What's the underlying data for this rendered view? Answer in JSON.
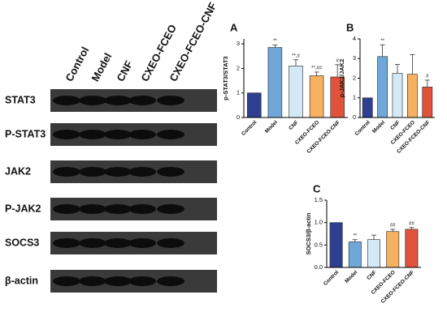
{
  "blot": {
    "lanes": [
      "Control",
      "Model",
      "CNF",
      "CXEO-FCEO",
      "CXEO-FCEO-CNF"
    ],
    "proteins": [
      "STAT3",
      "P-STAT3",
      "JAK2",
      "P-JAK2",
      "SOCS3",
      "β-actin"
    ]
  },
  "chart_data": [
    {
      "type": "bar",
      "panel": "A",
      "y_label": "p-STAT3/STAT3",
      "categories": [
        "Control",
        "Model",
        "CNF",
        "CXEO-FCEO",
        "CXEO-FCEO-CNF"
      ],
      "values": [
        1.0,
        2.85,
        2.1,
        1.7,
        1.65
      ],
      "errors": [
        0,
        0.1,
        0.25,
        0.15,
        0.5
      ],
      "annotations": [
        null,
        "**",
        "**,#",
        "**,##",
        "#"
      ],
      "colors": [
        "#2e3f8f",
        "#6fa8d8",
        "#d3e9f6",
        "#f5b160",
        "#e0533a"
      ],
      "ylim": [
        0,
        3.2
      ],
      "yticks": [
        0,
        1,
        2,
        3
      ]
    },
    {
      "type": "bar",
      "panel": "B",
      "y_label": "p-JAK2/JAK2",
      "categories": [
        "Control",
        "Model",
        "CNF",
        "CXEO-FCEO",
        "CXEO-FCEO-CNF"
      ],
      "values": [
        1.0,
        3.1,
        2.25,
        2.2,
        1.55
      ],
      "errors": [
        0,
        0.6,
        0.45,
        1.0,
        0.35
      ],
      "annotations": [
        null,
        "**",
        null,
        null,
        "#"
      ],
      "colors": [
        "#2e3f8f",
        "#6fa8d8",
        "#d3e9f6",
        "#f5b160",
        "#e0533a"
      ],
      "ylim": [
        0,
        4
      ],
      "yticks": [
        0,
        1,
        2,
        3,
        4
      ]
    },
    {
      "type": "bar",
      "panel": "C",
      "y_label": "SOCS3/β-actin",
      "categories": [
        "Control",
        "Model",
        "CNF",
        "CXEO-FCEO",
        "CXEO-FCEO-CNF"
      ],
      "values": [
        1.0,
        0.57,
        0.62,
        0.8,
        0.85
      ],
      "errors": [
        0,
        0.05,
        0.1,
        0.05,
        0.04
      ],
      "annotations": [
        null,
        "**",
        null,
        "##",
        "##"
      ],
      "colors": [
        "#2e3f8f",
        "#6fa8d8",
        "#d3e9f6",
        "#f5b160",
        "#e0533a"
      ],
      "ylim": [
        0,
        1.5
      ],
      "yticks": [
        {
          "value": 0,
          "label": "0.0"
        },
        {
          "value": 0.5,
          "label": "0.5"
        },
        {
          "value": 1,
          "label": "1.0"
        },
        {
          "value": 1.5,
          "label": "1.5"
        }
      ]
    }
  ]
}
